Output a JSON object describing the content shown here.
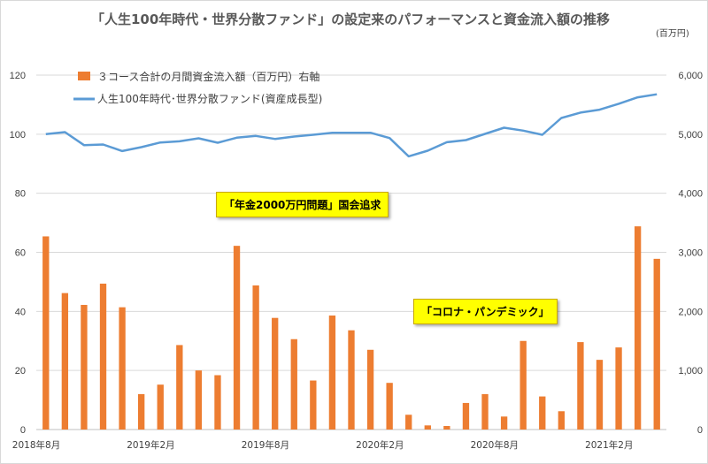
{
  "title": "「人生100年時代・世界分散ファンド」の設定来のパフォーマンスと資金流入額の推移",
  "right_unit": "(百万円)",
  "annotations": {
    "a1": "「年金2000万円問題」国会追求",
    "a2": "「コロナ・パンデミック」"
  },
  "colors": {
    "bar": "#ed7d31",
    "line": "#5b9bd5",
    "grid": "#d9d9d9"
  },
  "chart_data": {
    "type": "bar+line",
    "title": "「人生100年時代・世界分散ファンド」の設定来のパフォーマンスと資金流入額の推移",
    "legend": [
      {
        "name": "３コース合計の月間資金流入額（百万円）右軸",
        "kind": "bar"
      },
      {
        "name": "人生100年時代･世界分散ファンド(資産成長型)",
        "kind": "line"
      }
    ],
    "legend_placement": "top-left",
    "x_tick_labels": [
      {
        "index": 0,
        "label": "2018年8月"
      },
      {
        "index": 6,
        "label": "2019年2月"
      },
      {
        "index": 12,
        "label": "2019年8月"
      },
      {
        "index": 18,
        "label": "2020年2月"
      },
      {
        "index": 24,
        "label": "2020年8月"
      },
      {
        "index": 30,
        "label": "2021年2月"
      }
    ],
    "y_left": {
      "ticks": [
        "0",
        "20",
        "40",
        "60",
        "80",
        "100",
        "120"
      ],
      "ylim": [
        0,
        120
      ]
    },
    "y_right": {
      "ticks": [
        "0",
        "1,000",
        "2,000",
        "3,000",
        "4,000",
        "5,000",
        "6,000"
      ],
      "ylim": [
        0,
        6000
      ]
    },
    "grid": true,
    "bars": [
      3270,
      2310,
      2110,
      2470,
      2070,
      600,
      760,
      1430,
      1000,
      920,
      3110,
      2440,
      1890,
      1530,
      830,
      1930,
      1680,
      1350,
      790,
      250,
      70,
      60,
      450,
      600,
      220,
      1500,
      560,
      310,
      1480,
      1180,
      1390,
      3440,
      2890
    ],
    "line": [
      100,
      100.7,
      96.3,
      96.5,
      94.3,
      95.6,
      97.2,
      97.6,
      98.6,
      97.1,
      98.8,
      99.4,
      98.4,
      99.2,
      99.8,
      100.5,
      100.5,
      100.5,
      98.7,
      92.5,
      94.4,
      97.3,
      98.0,
      100.1,
      102.2,
      101.2,
      99.8,
      105.5,
      107.3,
      108.3,
      110.3,
      112.5,
      113.5
    ]
  }
}
